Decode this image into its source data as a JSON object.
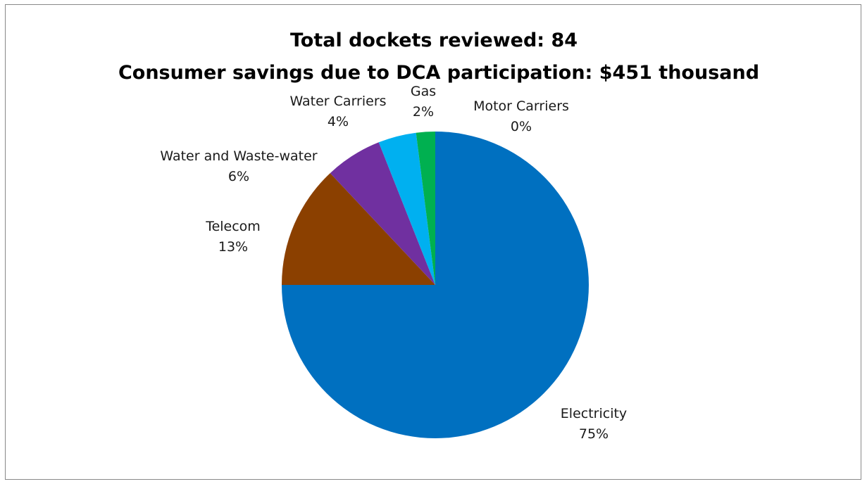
{
  "chart_data": {
    "type": "pie",
    "title": "Total dockets reviewed: 84",
    "subtitle": "Consumer savings due to DCA participation: $451 thousand",
    "categories": [
      "Electricity",
      "Telecom",
      "Water and Waste-water",
      "Water Carriers",
      "Gas",
      "Motor Carriers"
    ],
    "values": [
      75,
      13,
      6,
      4,
      2,
      0
    ],
    "labels": [
      "75%",
      "13%",
      "6%",
      "4%",
      "2%",
      "0%"
    ],
    "colors": [
      "#0070C0",
      "#8B4000",
      "#7030A0",
      "#00B0F0",
      "#00B050",
      "#FFC000"
    ],
    "legend": "none"
  }
}
